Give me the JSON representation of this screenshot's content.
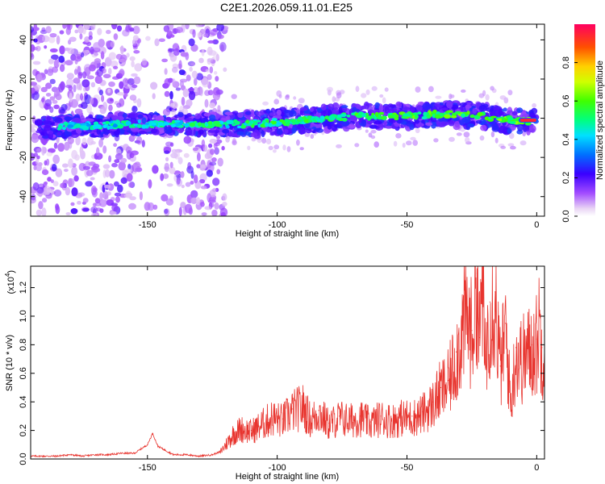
{
  "title": "C2E1.2026.059.11.01.E25",
  "chart_data": [
    {
      "type": "heatmap",
      "xlabel": "Height of straight line (km)",
      "ylabel": "Frequency (Hz)",
      "xlim": [
        -195,
        3
      ],
      "ylim": [
        -50,
        48
      ],
      "xticks": [
        -150,
        -100,
        -50,
        0
      ],
      "xtick_labels": [
        "-150",
        "-100",
        "-50",
        "0"
      ],
      "yticks": [
        -40,
        -20,
        0,
        20,
        40
      ],
      "ytick_labels": [
        "-40",
        "-20",
        "0",
        "20",
        "40"
      ],
      "ridge": {
        "x": [
          -190,
          -180,
          -170,
          -160,
          -150,
          -140,
          -130,
          -120,
          -110,
          -100,
          -90,
          -80,
          -70,
          -60,
          -50,
          -40,
          -30,
          -20,
          -10,
          0
        ],
        "freq": [
          -5,
          -4,
          -4,
          -3,
          -3,
          -3,
          -3,
          -3,
          -3,
          -2,
          -1,
          0,
          1,
          1,
          1,
          2,
          2,
          1,
          -1,
          -2
        ]
      },
      "colorbar": {
        "label": "Normalized spectral amplitude",
        "range": [
          0,
          1
        ],
        "ticks": [
          0.0,
          0.2,
          0.4,
          0.6,
          0.8
        ],
        "tick_labels": [
          "0.0",
          "0.2",
          "0.4",
          "0.6",
          "0.8"
        ]
      }
    },
    {
      "type": "line",
      "xlabel": "Height of straight line (km)",
      "ylabel": "SNR (10 * v/v)",
      "y_multiplier": "(x10",
      "y_multiplier_exp": "4",
      "y_multiplier_close": ")",
      "xlim": [
        -195,
        3
      ],
      "ylim": [
        0,
        1.35
      ],
      "xticks": [
        -150,
        -100,
        -50,
        0
      ],
      "xtick_labels": [
        "-150",
        "-100",
        "-50",
        "0"
      ],
      "yticks": [
        0.0,
        0.2,
        0.4,
        0.6,
        0.8,
        1.0,
        1.2
      ],
      "ytick_labels": [
        "0.0",
        "0.2",
        "0.4",
        "0.6",
        "0.8",
        "1.0",
        "1.2"
      ],
      "series": [
        {
          "color": "#e8352f",
          "x": [
            -195,
            -190,
            -185,
            -180,
            -175,
            -170,
            -165,
            -160,
            -155,
            -150,
            -148,
            -146,
            -143,
            -140,
            -135,
            -130,
            -125,
            -122,
            -120,
            -117,
            -114,
            -110,
            -106,
            -102,
            -98,
            -94,
            -90,
            -87,
            -84,
            -80,
            -76,
            -72,
            -68,
            -64,
            -60,
            -56,
            -52,
            -48,
            -44,
            -40,
            -37,
            -34,
            -31,
            -29,
            -27,
            -25,
            -23,
            -22,
            -21,
            -20,
            -18,
            -16,
            -14,
            -12,
            -10,
            -8,
            -6,
            -4,
            -2,
            0,
            1,
            2,
            3
          ],
          "y": [
            0.02,
            0.02,
            0.02,
            0.03,
            0.02,
            0.03,
            0.03,
            0.04,
            0.04,
            0.1,
            0.18,
            0.09,
            0.06,
            0.03,
            0.03,
            0.02,
            0.03,
            0.05,
            0.1,
            0.18,
            0.22,
            0.2,
            0.25,
            0.3,
            0.28,
            0.35,
            0.38,
            0.28,
            0.34,
            0.25,
            0.3,
            0.28,
            0.3,
            0.26,
            0.3,
            0.28,
            0.3,
            0.3,
            0.33,
            0.4,
            0.5,
            0.55,
            0.75,
            0.9,
            1.05,
            0.9,
            1.3,
            0.85,
            1.35,
            0.7,
            1.1,
            1.17,
            0.65,
            0.95,
            0.4,
            0.78,
            0.72,
            0.76,
            0.8,
            0.84,
            1.0,
            0.78,
            0.86
          ]
        }
      ]
    }
  ]
}
